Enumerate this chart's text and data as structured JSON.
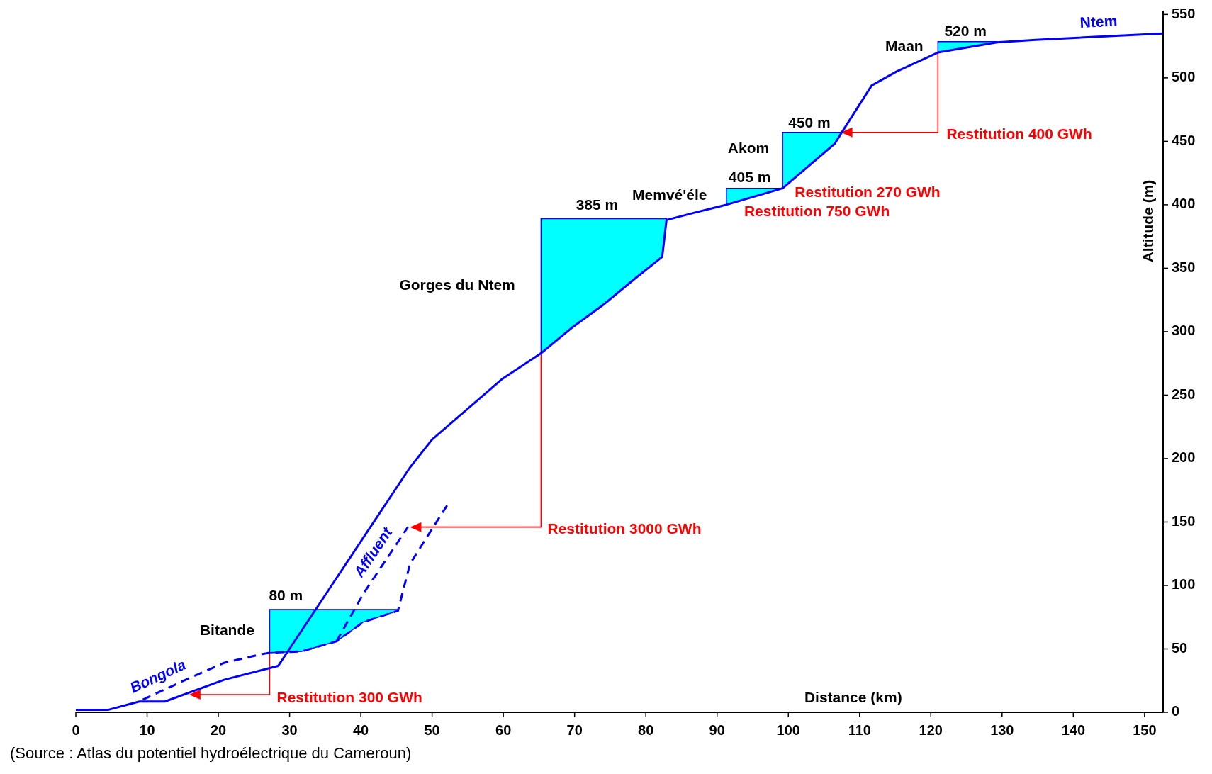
{
  "chart_data": {
    "type": "line",
    "xlabel": "Distance (km)",
    "ylabel": "Altitude (m)",
    "xlim": [
      0,
      152.6
    ],
    "ylim": [
      0,
      553
    ],
    "xticks": [
      0,
      10,
      20,
      30,
      40,
      50,
      60,
      70,
      80,
      90,
      100,
      110,
      120,
      130,
      140,
      150
    ],
    "yticks": [
      0,
      50,
      100,
      150,
      200,
      250,
      300,
      350,
      400,
      450,
      500,
      550
    ],
    "series": [
      {
        "name": "Bongola",
        "color": "#0000ff",
        "line_style": "dashed",
        "x": [
          52.1,
          49.6,
          46.9,
          45.2,
          40.3,
          36.6,
          31.7,
          27.2,
          26.2,
          20.8,
          15.4,
          9.4
        ],
        "values": [
          163,
          141,
          117,
          80,
          71,
          56,
          48,
          47,
          46,
          39,
          25.6,
          10
        ],
        "lower": [
          null,
          null,
          null,
          80,
          71,
          56,
          48,
          47,
          null,
          null,
          null,
          null
        ],
        "upper": [
          null,
          null,
          null,
          81,
          81,
          81,
          81,
          81,
          null,
          null,
          null,
          null
        ]
      },
      {
        "name": "Affluent",
        "color": "#0000ff",
        "line_style": "dashed",
        "x": [
          36.6,
          40.3,
          46.6
        ],
        "values": [
          56,
          93,
          146
        ]
      },
      {
        "name": "Ntem",
        "color": "#0000ff",
        "line_style": "solid",
        "x": [
          0,
          4.6,
          8.9,
          12.5,
          20.8,
          28.4,
          46.9,
          50,
          59.9,
          65.3,
          69.6,
          74,
          78.3,
          82.3,
          82.9,
          87,
          91.3,
          99.2,
          99.2,
          106.5,
          107.5,
          111.7,
          115.2,
          121,
          129.3,
          134.7,
          152.6
        ],
        "values": [
          2,
          2,
          8.5,
          8.5,
          25.6,
          36.6,
          193,
          215,
          263,
          283,
          303,
          321,
          341,
          359,
          388,
          394,
          400,
          413,
          413,
          448,
          457,
          494,
          505,
          520,
          528,
          530,
          535
        ],
        "lower": [
          null,
          null,
          null,
          null,
          null,
          null,
          null,
          null,
          null,
          283,
          303,
          321,
          341,
          359,
          388,
          null,
          400,
          413,
          413,
          448,
          457,
          null,
          null,
          520,
          528,
          null,
          null
        ],
        "upper": [
          null,
          null,
          null,
          null,
          null,
          null,
          null,
          null,
          null,
          389,
          389,
          389,
          389,
          389,
          389,
          null,
          413,
          413,
          457,
          457,
          457,
          null,
          null,
          528.5,
          528.5,
          null,
          null
        ]
      }
    ],
    "annotations": [
      "80 m",
      "Bitande",
      "Gorges du Ntem",
      "385 m",
      "Memvé'éle",
      "405 m",
      "Akom",
      "450 m",
      "Maan",
      "520 m",
      "Restitution 300 GWh",
      "Restitution 3000 GWh",
      "Restitution 400 GWh",
      "Restitution 270 GWh",
      "Restitution 750 GWh",
      "(Source : Atlas du potentiel hydroélectrique du Cameroun)"
    ]
  }
}
